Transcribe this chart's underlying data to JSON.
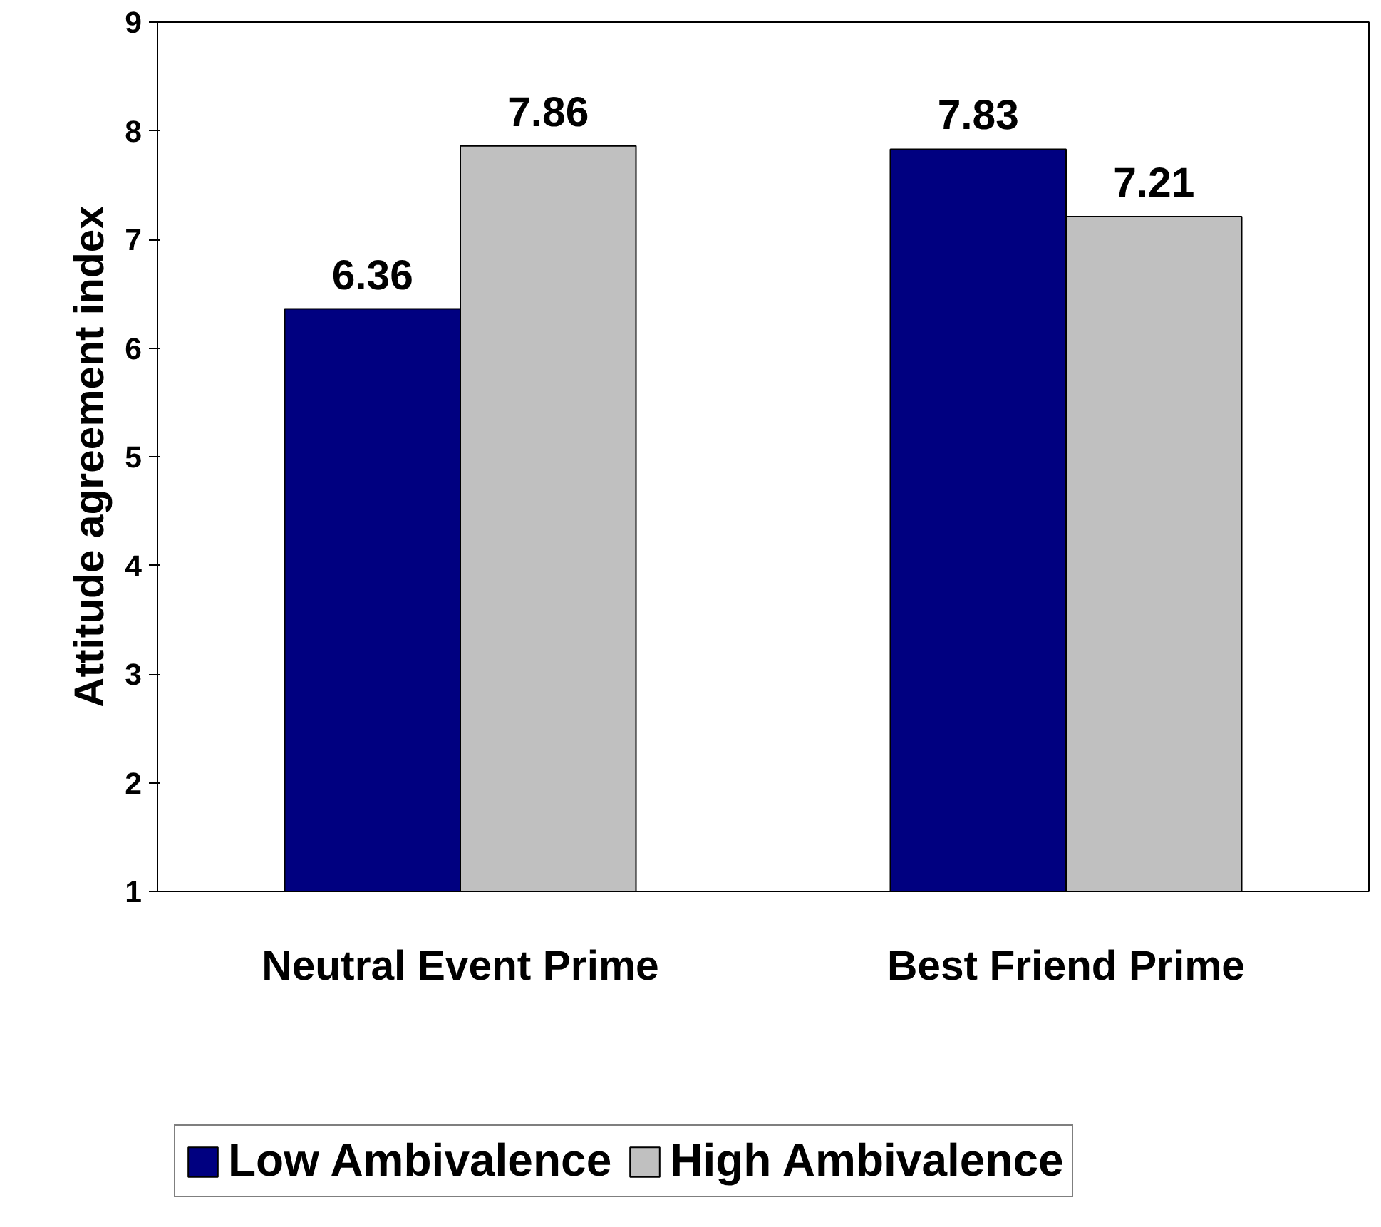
{
  "chart_data": {
    "type": "bar",
    "ylabel": "Attitude agreement index",
    "categories": [
      "Neutral Event Prime",
      "Best Friend Prime"
    ],
    "series": [
      {
        "name": "Low Ambivalence",
        "color": "#000080",
        "values": [
          6.36,
          7.83
        ]
      },
      {
        "name": "High Ambivalence",
        "color": "#c0c0c0",
        "values": [
          7.86,
          7.21
        ]
      }
    ],
    "ylim": [
      1,
      9
    ],
    "yticks": [
      1,
      2,
      3,
      4,
      5,
      6,
      7,
      8,
      9
    ],
    "data_labels": true,
    "grid": false,
    "legend": "bottom"
  }
}
